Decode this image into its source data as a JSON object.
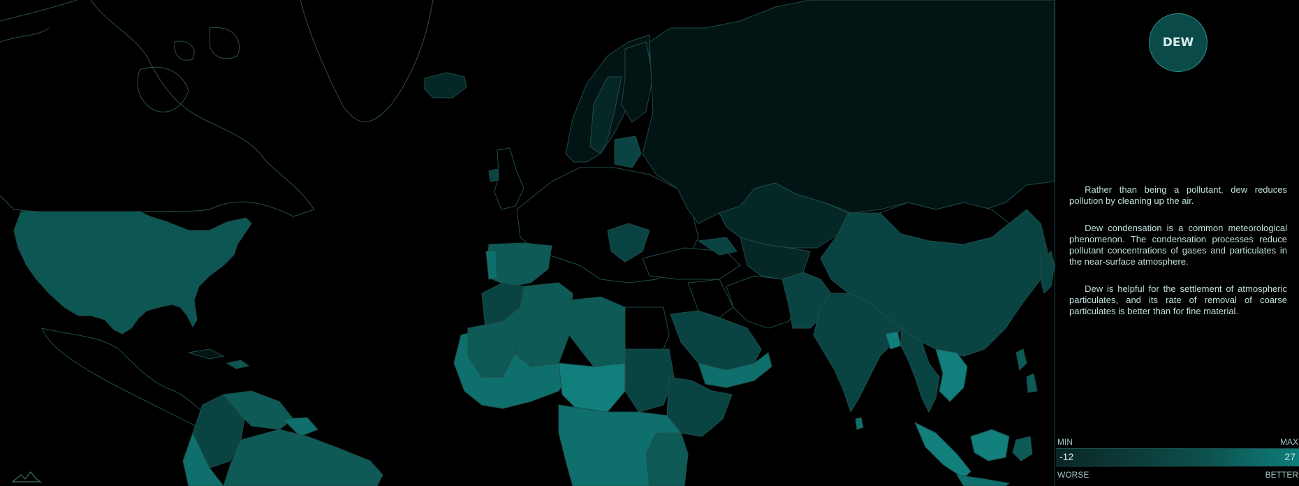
{
  "panel": {
    "badge": "DEW",
    "paragraphs": [
      "Rather than being a pollutant, dew reduces pollution by cleaning up the air.",
      "Dew condensation is a common meteorological phenomenon. The condensation processes reduce pollutant concentrations of gases and particulates in the near-surface atmosphere.",
      "Dew is helpful for the settlement of atmospheric particulates, and its rate of removal of coarse particulates is better than for fine material."
    ]
  },
  "legend": {
    "min_label": "MIN",
    "max_label": "MAX",
    "min_value": "-12",
    "max_value": "27",
    "worse_label": "WORSE",
    "better_label": "BETTER"
  },
  "colors": {
    "level_0": "#000000",
    "level_1": "#021413",
    "level_2": "#052826",
    "level_3": "#0a4442",
    "level_4": "#0d5a57",
    "level_5": "#0f6f6c",
    "level_6": "#117f7c"
  }
}
